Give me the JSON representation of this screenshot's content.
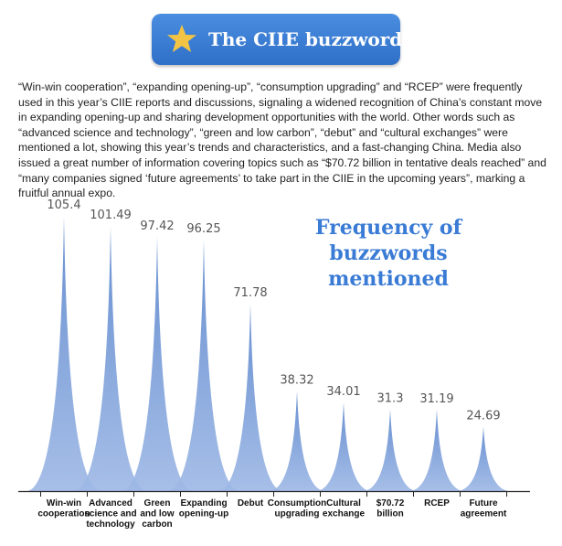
{
  "header": {
    "title": "The CIIE buzzwords",
    "icon": "star-icon",
    "bg_color": "#3b7fd8",
    "star_color": "#f3c443"
  },
  "intro": {
    "text": "“Win-win cooperation”, “expanding opening-up”, “consumption upgrading” and “RCEP” were frequently used in this year’s CIIE reports and discussions, signaling a widened recognition of China’s constant move in expanding opening-up and sharing development opportunities with the world. Other words such as “advanced science and technology”, “green and low carbon”, “debut” and “cultural exchanges” were mentioned a lot, showing this year’s trends and characteristics, and a fast-changing China. Media also issued a great number of information covering topics such as “$70.72 billion in tentative deals reached” and “many companies signed ‘future agreements’ to take part in the CIIE in the upcoming years”, marking a fruitful annual expo."
  },
  "chart_data": {
    "type": "area",
    "title": "Frequency of buzzwords mentioned",
    "categories": [
      [
        "Win-win",
        "cooperation"
      ],
      [
        "Advanced",
        "science and",
        "technology"
      ],
      [
        "Green",
        "and low",
        "carbon"
      ],
      [
        "Expanding",
        "opening-up"
      ],
      [
        "Debut"
      ],
      [
        "Consumption",
        "upgrading"
      ],
      [
        "Cultural",
        "exchange"
      ],
      [
        "$70.72",
        "billion"
      ],
      [
        "RCEP"
      ],
      [
        "Future",
        "agreement"
      ]
    ],
    "values": [
      105.4,
      101.49,
      97.42,
      96.25,
      71.78,
      38.32,
      34.01,
      31.3,
      31.19,
      24.69
    ],
    "value_labels": [
      "105.4",
      "101.49",
      "97.42",
      "96.25",
      "71.78",
      "38.32",
      "34.01",
      "31.3",
      "31.19",
      "24.69"
    ],
    "fill_color": "#5b86cc",
    "label_color": "#555555"
  }
}
